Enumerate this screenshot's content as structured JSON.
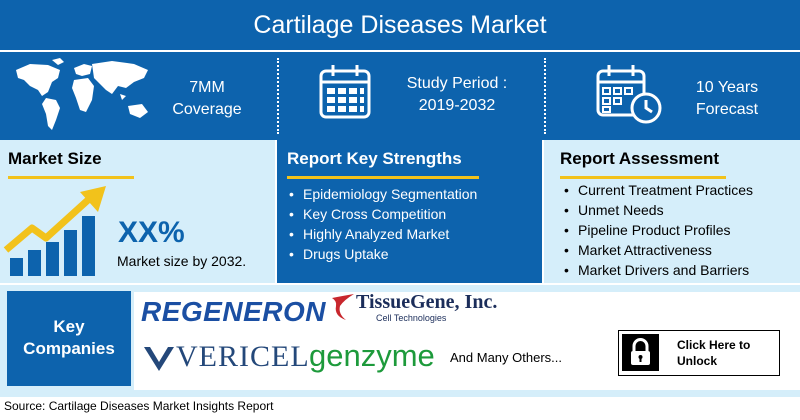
{
  "header": {
    "title": "Cartilage Diseases Market"
  },
  "top_row": {
    "coverage": {
      "icon": "world-map-icon",
      "line1": "7MM",
      "line2": "Coverage"
    },
    "study": {
      "icon": "calendar-icon",
      "line1": "Study Period :",
      "line2": "2019-2032"
    },
    "forecast": {
      "icon": "calendar-clock-icon",
      "line1": "10 Years",
      "line2": "Forecast"
    }
  },
  "market_size": {
    "title": "Market Size",
    "value": "XX%",
    "caption": "Market size by 2032.",
    "icon": "growth-chart-icon"
  },
  "strengths": {
    "title": "Report Key Strengths",
    "items": [
      "Epidemiology Segmentation",
      "Key Cross Competition",
      "Highly Analyzed Market",
      "Drugs Uptake"
    ]
  },
  "assessment": {
    "title": "Report Assessment",
    "items": [
      "Current Treatment Practices",
      "Unmet Needs",
      "Pipeline Product Profiles",
      "Market Attractiveness",
      "Market Drivers and Barriers"
    ]
  },
  "companies": {
    "label_line1": "Key",
    "label_line2": "Companies",
    "logos": {
      "regeneron": "REGENERON",
      "tissuegene": "TissueGene, Inc.",
      "tissuegene_sub": "Cell Technologies",
      "vericel": "VERICEL",
      "genzyme": "genzyme"
    },
    "others": "And Many Others..."
  },
  "unlock": {
    "line1": "Click Here to",
    "line2": "Unlock",
    "icon": "lock-icon"
  },
  "footer": {
    "source": "Source: Cartilage Diseases Market Insights Report"
  },
  "colors": {
    "primary": "#0d63ad",
    "light": "#d5eefa",
    "accent": "#f2c21b",
    "genzyme": "#1d9a3b"
  }
}
